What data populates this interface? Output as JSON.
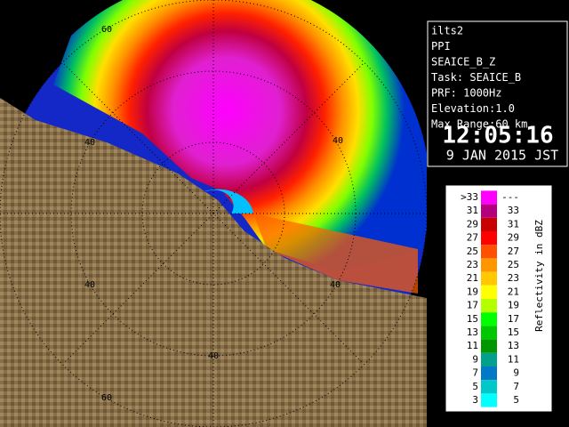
{
  "info": {
    "lines": [
      "ilts2",
      "PPI",
      "SEAICE_B_Z",
      "Task: SEAICE_B",
      "PRF: 1000Hz",
      "Elevation:1.0",
      "Max Range:60 km"
    ],
    "time": "12:05:16",
    "date": "9 JAN 2015 JST"
  },
  "legend": {
    "title": "Reflectivity in dBZ",
    "rows": [
      {
        "low": ">33",
        "high": "---",
        "color": "#ff00ff"
      },
      {
        "low": "31",
        "high": "33",
        "color": "#b4007f"
      },
      {
        "low": "29",
        "high": "31",
        "color": "#c80000"
      },
      {
        "low": "27",
        "high": "29",
        "color": "#ff0000"
      },
      {
        "low": "25",
        "high": "27",
        "color": "#ff5000"
      },
      {
        "low": "23",
        "high": "25",
        "color": "#ff9600"
      },
      {
        "low": "21",
        "high": "23",
        "color": "#ffc800"
      },
      {
        "low": "19",
        "high": "21",
        "color": "#ffff00"
      },
      {
        "low": "17",
        "high": "19",
        "color": "#b4ff00"
      },
      {
        "low": "15",
        "high": "17",
        "color": "#00ff00"
      },
      {
        "low": "13",
        "high": "15",
        "color": "#00c800"
      },
      {
        "low": "11",
        "high": "13",
        "color": "#009600"
      },
      {
        "low": "9",
        "high": "11",
        "color": "#00a08c"
      },
      {
        "low": "7",
        "high": "9",
        "color": "#0078c8"
      },
      {
        "low": "5",
        "high": "7",
        "color": "#00c8c8"
      },
      {
        "low": "3",
        "high": "5",
        "color": "#00ffff"
      }
    ]
  },
  "map": {
    "ring_labels": [
      "60",
      "40",
      "40",
      "40",
      "40",
      "40",
      "60"
    ]
  }
}
